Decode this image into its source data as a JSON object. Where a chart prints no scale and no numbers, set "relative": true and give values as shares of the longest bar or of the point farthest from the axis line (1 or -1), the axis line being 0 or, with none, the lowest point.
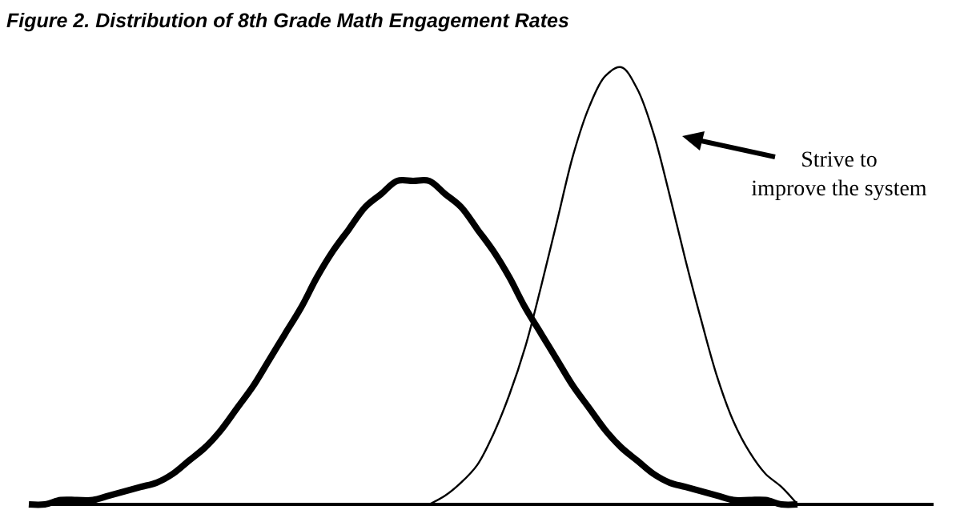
{
  "chart_data": {
    "type": "line",
    "relative": true,
    "title": "Figure 2. Distribution of 8th Grade Math Engagement Rates",
    "categories": [
      null,
      null,
      null,
      null,
      null,
      null,
      null,
      null,
      null,
      null,
      null,
      null,
      null,
      null,
      null,
      null,
      null,
      null,
      null,
      null,
      null,
      null,
      null,
      null,
      null,
      null,
      null,
      null,
      null,
      null,
      null,
      null,
      null,
      null,
      null,
      null,
      null,
      null,
      null,
      null,
      null,
      null,
      null,
      null,
      null,
      null,
      null,
      null,
      null,
      null,
      null,
      null,
      null,
      null,
      null,
      null,
      null
    ],
    "series": [
      {
        "color": "#000000",
        "values": [
          0,
          0,
          0.01,
          0.01,
          0.01,
          0.02,
          0.03,
          0.04,
          0.05,
          0.07,
          0.1,
          0.13,
          0.17,
          0.22,
          0.27,
          0.33,
          0.39,
          0.45,
          0.52,
          0.58,
          0.63,
          0.68,
          0.71,
          0.74,
          0.74,
          0.74,
          0.71,
          0.68,
          0.63,
          0.58,
          0.52,
          0.45,
          0.39,
          0.33,
          0.27,
          0.22,
          0.17,
          0.13,
          0.1,
          0.07,
          0.05,
          0.04,
          0.03,
          0.02,
          0.01,
          0.01,
          0.01,
          0,
          0,
          null,
          null,
          null,
          null,
          null,
          null,
          null,
          null
        ]
      },
      {
        "color": "#000000",
        "values": [
          null,
          null,
          null,
          null,
          null,
          null,
          null,
          null,
          null,
          null,
          null,
          null,
          null,
          null,
          null,
          null,
          null,
          null,
          null,
          null,
          null,
          null,
          null,
          null,
          null,
          0,
          0.02,
          0.05,
          0.09,
          0.16,
          0.25,
          0.36,
          0.5,
          0.65,
          0.8,
          0.91,
          0.98,
          1,
          0.95,
          0.85,
          0.71,
          0.56,
          0.42,
          0.29,
          0.19,
          0.12,
          0.07,
          0.04,
          0,
          null,
          null,
          null,
          null,
          null,
          null,
          null,
          null
        ]
      }
    ],
    "annotations": [
      "Strive to improve the system"
    ],
    "grid": false,
    "marker": "none",
    "line_style": "solid"
  }
}
